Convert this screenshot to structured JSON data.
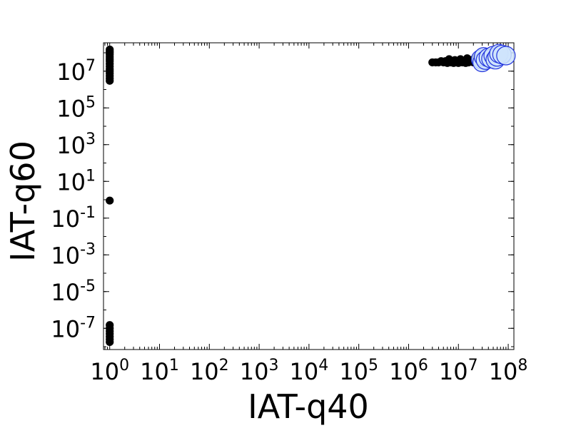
{
  "chart_data": {
    "type": "scatter",
    "title": "",
    "xlabel": "IAT-q40",
    "ylabel": "IAT-q60",
    "xscale": "log",
    "yscale": "log",
    "xlim": [
      0.75,
      130000000
    ],
    "ylim": [
      7e-09,
      350000000
    ],
    "grid": false,
    "x_ticks": [
      {
        "base": "10",
        "exp": "0",
        "value": 1
      },
      {
        "base": "10",
        "exp": "1",
        "value": 10
      },
      {
        "base": "10",
        "exp": "2",
        "value": 100
      },
      {
        "base": "10",
        "exp": "3",
        "value": 1000
      },
      {
        "base": "10",
        "exp": "4",
        "value": 10000
      },
      {
        "base": "10",
        "exp": "5",
        "value": 100000
      },
      {
        "base": "10",
        "exp": "6",
        "value": 1000000
      },
      {
        "base": "10",
        "exp": "7",
        "value": 10000000
      },
      {
        "base": "10",
        "exp": "8",
        "value": 100000000
      }
    ],
    "y_ticks": [
      {
        "base": "10",
        "exp": "7",
        "value": 10000000
      },
      {
        "base": "10",
        "exp": "5",
        "value": 100000
      },
      {
        "base": "10",
        "exp": "3",
        "value": 1000
      },
      {
        "base": "10",
        "exp": "1",
        "value": 10
      },
      {
        "base": "10",
        "exp": "-1",
        "value": 0.1
      },
      {
        "base": "10",
        "exp": "-3",
        "value": 0.001
      },
      {
        "base": "10",
        "exp": "-5",
        "value": 1e-05
      },
      {
        "base": "10",
        "exp": "-7",
        "value": 1e-07
      }
    ],
    "series": [
      {
        "color": "#000000",
        "edge_color": "#000000",
        "points": [
          [
            1,
            150000000
          ],
          [
            1,
            120000000
          ],
          [
            1,
            100000000
          ],
          [
            1,
            80000000
          ],
          [
            1,
            60000000
          ],
          [
            1,
            45000000
          ],
          [
            1,
            35000000
          ],
          [
            1,
            25000000
          ],
          [
            1,
            18000000
          ],
          [
            1,
            13000000
          ],
          [
            1,
            10000000
          ],
          [
            1,
            7500000
          ],
          [
            1,
            5500000
          ],
          [
            1,
            4000000
          ],
          [
            1,
            3000000
          ],
          [
            1,
            0.9
          ],
          [
            1,
            1.5e-07
          ],
          [
            1,
            1e-07
          ],
          [
            1,
            7e-08
          ],
          [
            1,
            5e-08
          ],
          [
            1,
            3.5e-08
          ],
          [
            1,
            2.5e-08
          ],
          [
            1,
            1.8e-08
          ],
          [
            3000000,
            30000000
          ],
          [
            3500000,
            30000000
          ],
          [
            4000000,
            30000000
          ],
          [
            4500000,
            35000000
          ],
          [
            5000000,
            30000000
          ],
          [
            5500000,
            35000000
          ],
          [
            6000000,
            28000000
          ],
          [
            6500000,
            45000000
          ],
          [
            7000000,
            30000000
          ],
          [
            8000000,
            28000000
          ],
          [
            8500000,
            40000000
          ],
          [
            9000000,
            30000000
          ],
          [
            10000000,
            28000000
          ],
          [
            11000000,
            45000000
          ],
          [
            12000000,
            30000000
          ],
          [
            13000000,
            35000000
          ],
          [
            14000000,
            28000000
          ],
          [
            15000000,
            50000000
          ],
          [
            16000000,
            30000000
          ],
          [
            18000000,
            40000000
          ],
          [
            20000000,
            30000000
          ],
          [
            22000000,
            55000000
          ]
        ]
      },
      {
        "color": "#cfe4fb",
        "edge_color": "#2233dd",
        "points": [
          [
            28000000,
            45000000
          ],
          [
            30000000,
            30000000
          ],
          [
            32000000,
            60000000
          ],
          [
            35000000,
            40000000
          ],
          [
            40000000,
            55000000
          ],
          [
            45000000,
            48000000
          ],
          [
            50000000,
            70000000
          ],
          [
            55000000,
            42000000
          ],
          [
            60000000,
            60000000
          ],
          [
            65000000,
            90000000
          ],
          [
            75000000,
            80000000
          ],
          [
            90000000,
            70000000
          ]
        ]
      }
    ]
  }
}
